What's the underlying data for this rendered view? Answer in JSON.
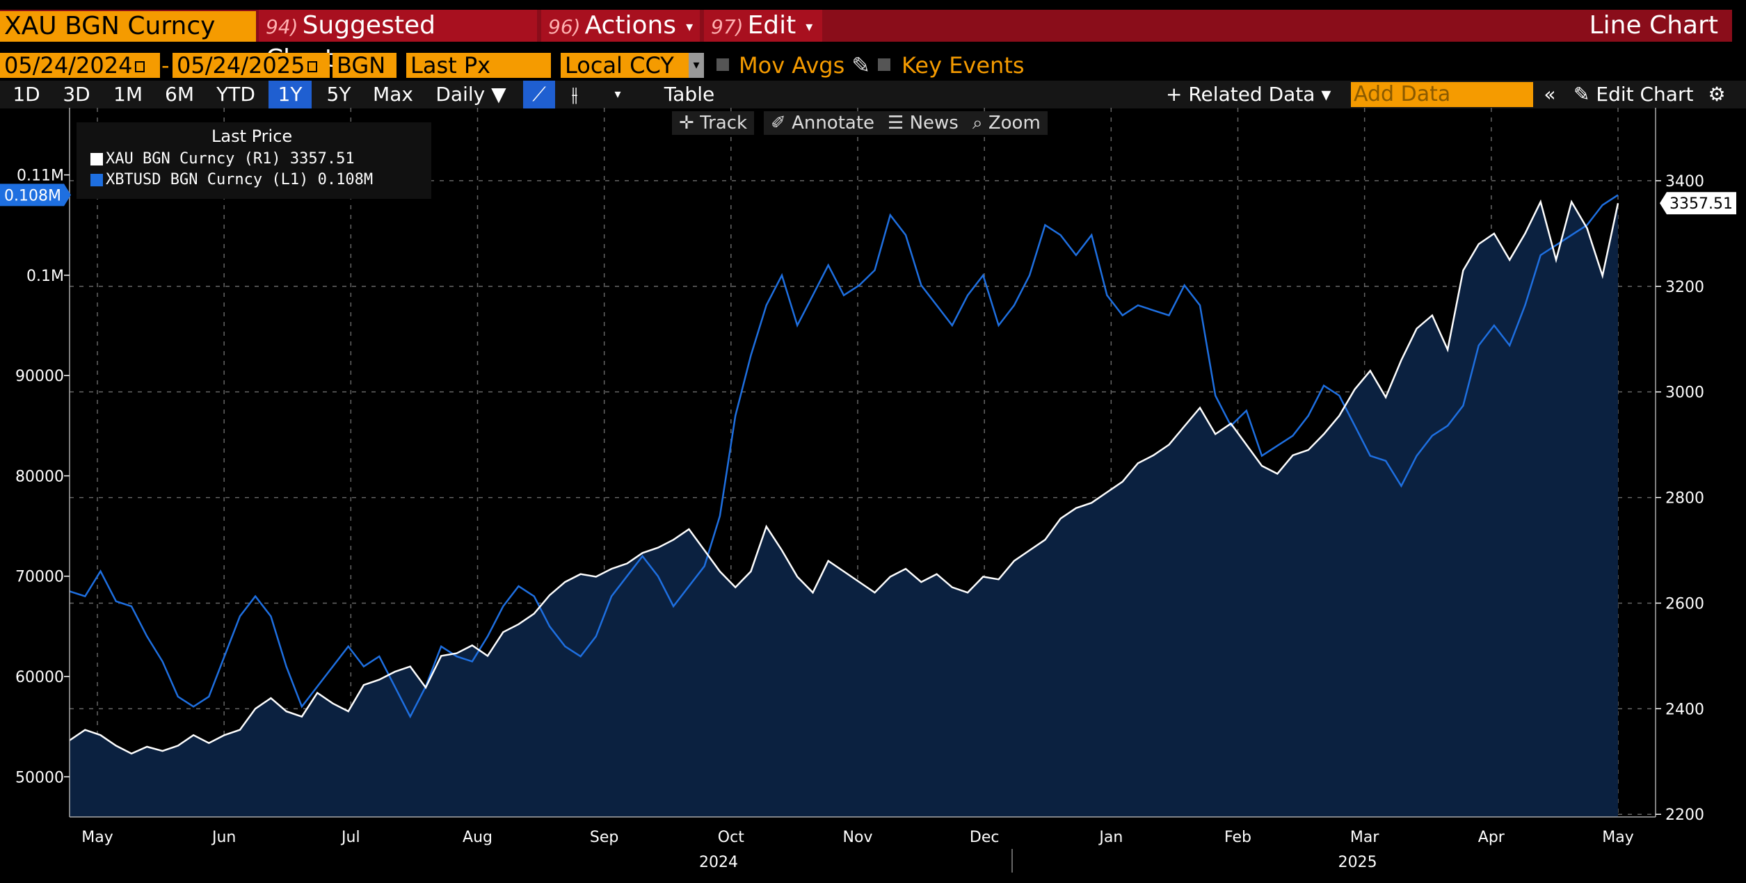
{
  "header": {
    "security": "XAU BGN Curncy",
    "suggested_num": "94)",
    "suggested_label": "Suggested Charts",
    "actions_num": "96)",
    "actions_label": "Actions",
    "edit_num": "97)",
    "edit_label": "Edit",
    "chart_type": "Line Chart"
  },
  "controls": {
    "start_date": "05/24/2024",
    "end_date": "05/24/2025",
    "source": "BGN",
    "field": "Last Px",
    "currency": "Local CCY",
    "mov_avgs": "Mov Avgs",
    "key_events": "Key Events",
    "date_sep": "-"
  },
  "ranges": [
    "1D",
    "3D",
    "1M",
    "6M",
    "YTD",
    "1Y",
    "5Y",
    "Max"
  ],
  "active_range": "1Y",
  "periodicity": "Daily ▼",
  "table_label": "Table",
  "related_label": "+ Related Data ▾",
  "add_data_placeholder": "Add Data",
  "edit_chart_label": "Edit Chart",
  "tools": {
    "track": "Track",
    "annotate": "Annotate",
    "news": "News",
    "zoom": "Zoom"
  },
  "legend": {
    "title": "Last Price",
    "s1": "XAU BGN Curncy  (R1)     3357.51",
    "s2": "XBTUSD BGN Curncy  (L1)     0.108M"
  },
  "colors": {
    "gold_line": "#ffffff",
    "btc_line": "#1e6fe0",
    "area": "#0b2140",
    "accent": "#f59b00",
    "bar": "#8a0d1a"
  },
  "chart_data": {
    "type": "line",
    "title": "Line Chart",
    "x_range": [
      "2024-05-24",
      "2025-05-24"
    ],
    "x_tick_labels": [
      "May",
      "Jun",
      "Jul",
      "Aug",
      "Sep",
      "Oct",
      "Nov",
      "Dec",
      "Jan",
      "Feb",
      "Mar",
      "Apr",
      "May"
    ],
    "x_year_labels": [
      "2024",
      "2025"
    ],
    "left_axis": {
      "ticks": [
        50000,
        60000,
        70000,
        80000,
        90000,
        100000,
        110000
      ],
      "tick_labels": [
        "50000",
        "60000",
        "70000",
        "80000",
        "90000",
        "0.1M",
        "0.11M"
      ],
      "ylim": [
        46000,
        116000
      ]
    },
    "right_axis": {
      "ticks": [
        2200,
        2400,
        2600,
        2800,
        3000,
        3200,
        3400
      ],
      "tick_labels": [
        "2200",
        "2400",
        "2600",
        "2800",
        "3000",
        "3200",
        "3400"
      ],
      "ylim": [
        2195,
        3525
      ]
    },
    "last_left_label": "0.108M",
    "last_right_label": "3357.51",
    "series": [
      {
        "name": "XAU BGN Curncy",
        "axis": "right",
        "style": "white line with filled area",
        "t": [
          0,
          0.01,
          0.02,
          0.03,
          0.04,
          0.05,
          0.06,
          0.07,
          0.08,
          0.09,
          0.1,
          0.11,
          0.12,
          0.13,
          0.14,
          0.15,
          0.16,
          0.17,
          0.18,
          0.19,
          0.2,
          0.21,
          0.22,
          0.23,
          0.24,
          0.25,
          0.26,
          0.27,
          0.28,
          0.29,
          0.3,
          0.31,
          0.32,
          0.33,
          0.34,
          0.35,
          0.36,
          0.37,
          0.38,
          0.39,
          0.4,
          0.41,
          0.42,
          0.43,
          0.44,
          0.45,
          0.46,
          0.47,
          0.48,
          0.49,
          0.5,
          0.51,
          0.52,
          0.53,
          0.54,
          0.55,
          0.56,
          0.57,
          0.58,
          0.59,
          0.6,
          0.61,
          0.62,
          0.63,
          0.64,
          0.65,
          0.66,
          0.67,
          0.68,
          0.69,
          0.7,
          0.71,
          0.72,
          0.73,
          0.74,
          0.75,
          0.76,
          0.77,
          0.78,
          0.79,
          0.8,
          0.81,
          0.82,
          0.83,
          0.84,
          0.85,
          0.86,
          0.87,
          0.88,
          0.89,
          0.9,
          0.91,
          0.92,
          0.93,
          0.94,
          0.95,
          0.96,
          0.97,
          0.98,
          0.99,
          1.0
        ],
        "values": [
          2340,
          2360,
          2350,
          2330,
          2315,
          2328,
          2320,
          2330,
          2350,
          2335,
          2350,
          2360,
          2400,
          2420,
          2395,
          2385,
          2430,
          2410,
          2395,
          2445,
          2455,
          2470,
          2480,
          2440,
          2500,
          2505,
          2520,
          2500,
          2545,
          2560,
          2580,
          2615,
          2640,
          2655,
          2650,
          2665,
          2675,
          2695,
          2705,
          2720,
          2740,
          2700,
          2660,
          2630,
          2660,
          2745,
          2700,
          2650,
          2620,
          2680,
          2660,
          2640,
          2620,
          2650,
          2665,
          2640,
          2655,
          2630,
          2620,
          2650,
          2645,
          2680,
          2700,
          2720,
          2760,
          2780,
          2790,
          2810,
          2830,
          2865,
          2880,
          2900,
          2935,
          2970,
          2920,
          2940,
          2900,
          2860,
          2845,
          2880,
          2890,
          2920,
          2955,
          3005,
          3040,
          2990,
          3060,
          3120,
          3145,
          3080,
          3230,
          3280,
          3300,
          3250,
          3300,
          3360,
          3250,
          3360,
          3310,
          3220,
          3357.51
        ]
      },
      {
        "name": "XBTUSD BGN Curncy",
        "axis": "left",
        "style": "blue line",
        "t": [
          0,
          0.01,
          0.02,
          0.03,
          0.04,
          0.05,
          0.06,
          0.07,
          0.08,
          0.09,
          0.1,
          0.11,
          0.12,
          0.13,
          0.14,
          0.15,
          0.16,
          0.17,
          0.18,
          0.19,
          0.2,
          0.21,
          0.22,
          0.23,
          0.24,
          0.25,
          0.26,
          0.27,
          0.28,
          0.29,
          0.3,
          0.31,
          0.32,
          0.33,
          0.34,
          0.35,
          0.36,
          0.37,
          0.38,
          0.39,
          0.4,
          0.41,
          0.42,
          0.43,
          0.44,
          0.45,
          0.46,
          0.47,
          0.48,
          0.49,
          0.5,
          0.51,
          0.52,
          0.53,
          0.54,
          0.55,
          0.56,
          0.57,
          0.58,
          0.59,
          0.6,
          0.61,
          0.62,
          0.63,
          0.64,
          0.65,
          0.66,
          0.67,
          0.68,
          0.69,
          0.7,
          0.71,
          0.72,
          0.73,
          0.74,
          0.75,
          0.76,
          0.77,
          0.78,
          0.79,
          0.8,
          0.81,
          0.82,
          0.83,
          0.84,
          0.85,
          0.86,
          0.87,
          0.88,
          0.89,
          0.9,
          0.91,
          0.92,
          0.93,
          0.94,
          0.95,
          0.96,
          0.97,
          0.98,
          0.99,
          1.0
        ],
        "values": [
          68500,
          68000,
          70500,
          67500,
          67000,
          64000,
          61500,
          58000,
          57000,
          58000,
          62000,
          66000,
          68000,
          66000,
          61000,
          57000,
          59000,
          61000,
          63000,
          61000,
          62000,
          59000,
          56000,
          59000,
          63000,
          62000,
          61500,
          64000,
          67000,
          69000,
          68000,
          65000,
          63000,
          62000,
          64000,
          68000,
          70000,
          72000,
          70000,
          67000,
          69000,
          71000,
          76000,
          86000,
          92000,
          97000,
          100000,
          95000,
          98000,
          101000,
          98000,
          99000,
          100500,
          106000,
          104000,
          99000,
          97000,
          95000,
          98000,
          100000,
          95000,
          97000,
          100000,
          105000,
          104000,
          102000,
          104000,
          98000,
          96000,
          97000,
          96500,
          96000,
          99000,
          97000,
          88000,
          85000,
          86500,
          82000,
          83000,
          84000,
          86000,
          89000,
          88000,
          85000,
          82000,
          81500,
          79000,
          82000,
          84000,
          85000,
          87000,
          93000,
          95000,
          93000,
          97000,
          102000,
          103000,
          104000,
          105000,
          107000,
          108000
        ]
      }
    ]
  }
}
